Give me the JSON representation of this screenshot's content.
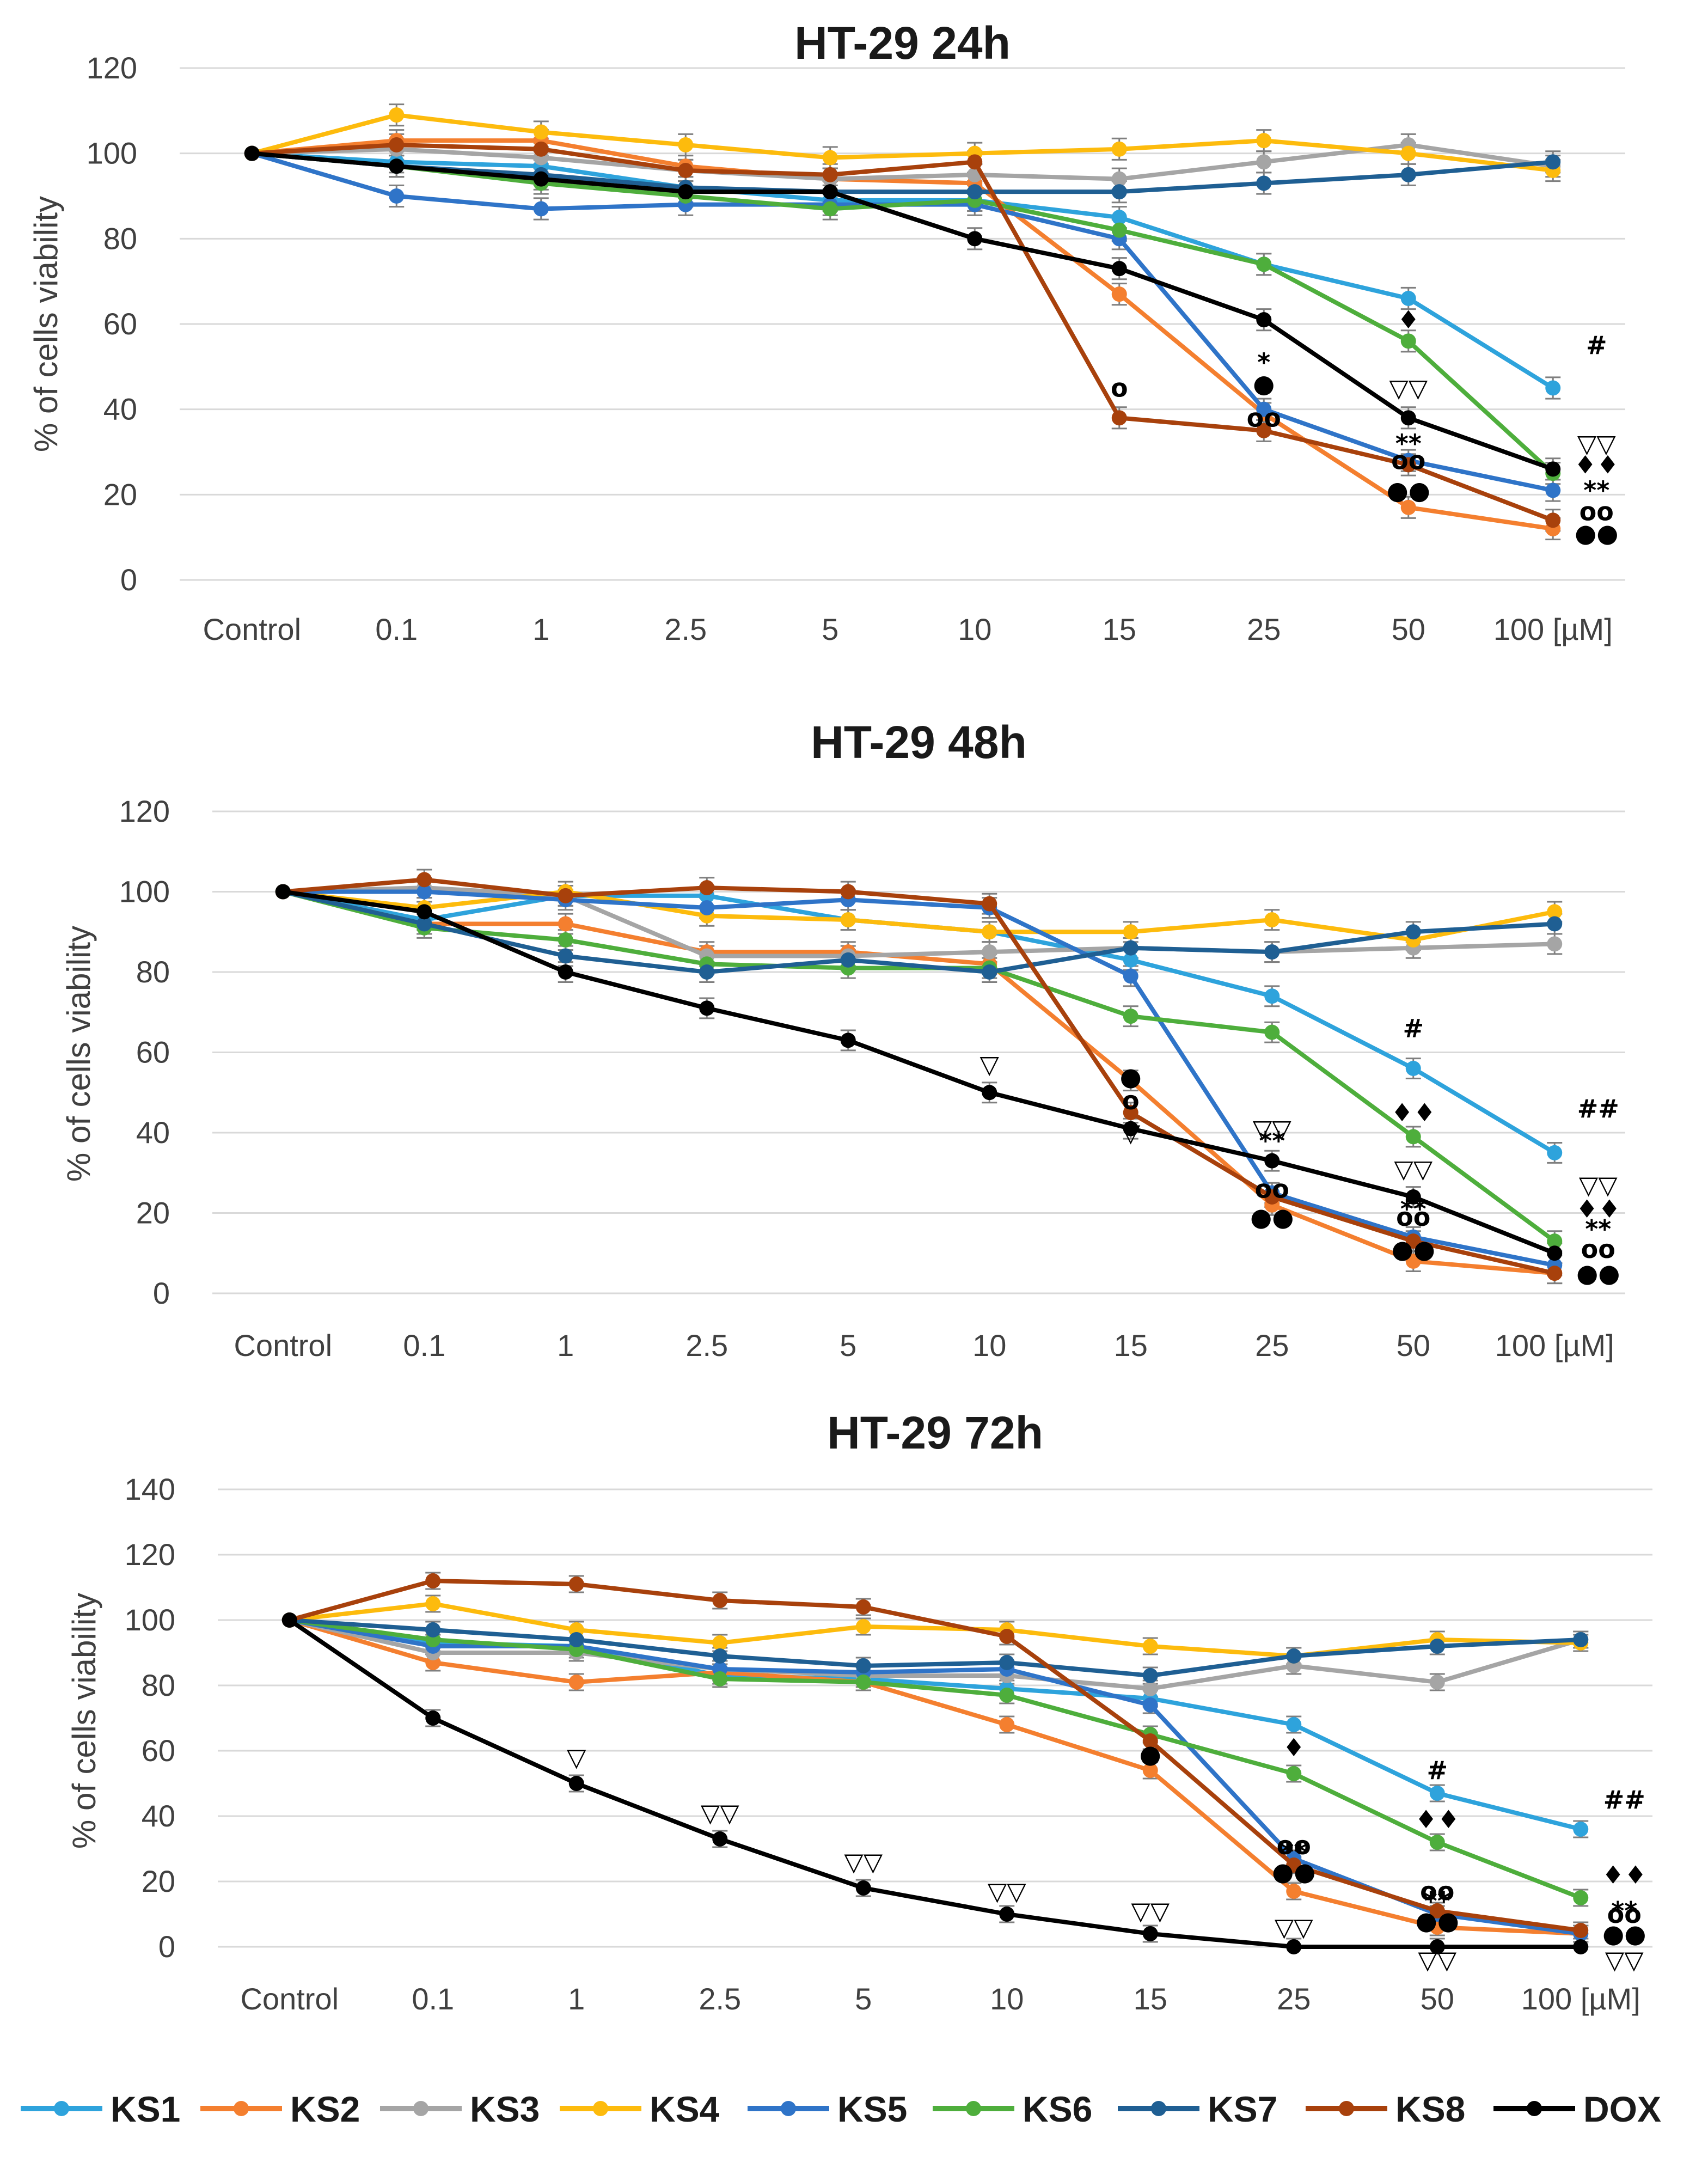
{
  "chart_data": [
    {
      "type": "line",
      "title": "HT-29 24h",
      "ylabel": "% of cells viability",
      "xlabel": "",
      "categories": [
        "Control",
        "0.1",
        "1",
        "2.5",
        "5",
        "10",
        "15",
        "25",
        "50",
        "100 [µM]"
      ],
      "ylim": [
        0,
        120
      ],
      "yticks": [
        0,
        20,
        40,
        60,
        80,
        100,
        120
      ],
      "grid": true,
      "series": [
        {
          "name": "KS1",
          "values": [
            100,
            98,
            97,
            92,
            89,
            89,
            85,
            74,
            66,
            45
          ]
        },
        {
          "name": "KS2",
          "values": [
            100,
            103,
            103,
            97,
            94,
            93,
            67,
            39,
            17,
            12
          ]
        },
        {
          "name": "KS3",
          "values": [
            100,
            101,
            99,
            96,
            94,
            95,
            94,
            98,
            102,
            97
          ]
        },
        {
          "name": "KS4",
          "values": [
            100,
            109,
            105,
            102,
            99,
            100,
            101,
            103,
            100,
            96
          ]
        },
        {
          "name": "KS5",
          "values": [
            100,
            90,
            87,
            88,
            88,
            88,
            80,
            40,
            28,
            21
          ]
        },
        {
          "name": "KS6",
          "values": [
            100,
            97,
            93,
            90,
            87,
            89,
            82,
            74,
            56,
            25
          ]
        },
        {
          "name": "KS7",
          "values": [
            100,
            97,
            95,
            92,
            91,
            91,
            91,
            93,
            95,
            98
          ]
        },
        {
          "name": "KS8",
          "values": [
            100,
            102,
            101,
            96,
            95,
            98,
            38,
            35,
            27,
            14
          ]
        },
        {
          "name": "DOX",
          "values": [
            100,
            97,
            94,
            91,
            91,
            80,
            73,
            61,
            38,
            26
          ]
        }
      ],
      "annotations": [
        {
          "text": "o",
          "category": "15",
          "y": 45
        },
        {
          "text": "*",
          "category": "25",
          "y": 51
        },
        {
          "text": "●",
          "category": "25",
          "y": 46
        },
        {
          "text": "oo",
          "category": "25",
          "y": 38
        },
        {
          "text": "♦",
          "category": "50",
          "y": 61
        },
        {
          "text": "▽▽",
          "category": "50",
          "y": 45
        },
        {
          "text": "**",
          "category": "50",
          "y": 32
        },
        {
          "text": "oo",
          "category": "50",
          "y": 28
        },
        {
          "text": "●●",
          "category": "50",
          "y": 21
        },
        {
          "text": "#",
          "category": "100 [µM]",
          "y": 55
        },
        {
          "text": "▽▽",
          "category": "100 [µM]",
          "y": 32
        },
        {
          "text": "♦♦",
          "category": "100 [µM]",
          "y": 27
        },
        {
          "text": "**",
          "category": "100 [µM]",
          "y": 21
        },
        {
          "text": "oo",
          "category": "100 [µM]",
          "y": 16
        },
        {
          "text": "●●",
          "category": "100 [µM]",
          "y": 11
        }
      ]
    },
    {
      "type": "line",
      "title": "HT-29 48h",
      "ylabel": "% of cells viability",
      "xlabel": "",
      "categories": [
        "Control",
        "0.1",
        "1",
        "2.5",
        "5",
        "10",
        "15",
        "25",
        "50",
        "100 [µM]"
      ],
      "ylim": [
        0,
        120
      ],
      "yticks": [
        0,
        20,
        40,
        60,
        80,
        100,
        120
      ],
      "grid": true,
      "series": [
        {
          "name": "KS1",
          "values": [
            100,
            93,
            99,
            99,
            93,
            90,
            83,
            74,
            56,
            35
          ]
        },
        {
          "name": "KS2",
          "values": [
            100,
            92,
            92,
            85,
            85,
            82,
            53,
            22,
            8,
            5
          ]
        },
        {
          "name": "KS3",
          "values": [
            100,
            101,
            99,
            84,
            84,
            85,
            86,
            85,
            86,
            87
          ]
        },
        {
          "name": "KS4",
          "values": [
            100,
            96,
            100,
            94,
            93,
            90,
            90,
            93,
            88,
            95
          ]
        },
        {
          "name": "KS5",
          "values": [
            100,
            100,
            98,
            96,
            98,
            96,
            79,
            25,
            14,
            7
          ]
        },
        {
          "name": "KS6",
          "values": [
            100,
            91,
            88,
            82,
            81,
            81,
            69,
            65,
            39,
            13
          ]
        },
        {
          "name": "KS7",
          "values": [
            100,
            92,
            84,
            80,
            83,
            80,
            86,
            85,
            90,
            92
          ]
        },
        {
          "name": "KS8",
          "values": [
            100,
            103,
            99,
            101,
            100,
            97,
            45,
            24,
            13,
            5
          ]
        },
        {
          "name": "DOX",
          "values": [
            100,
            95,
            80,
            71,
            63,
            50,
            41,
            33,
            24,
            10
          ]
        }
      ],
      "annotations": [
        {
          "text": "▽",
          "category": "10",
          "y": 57
        },
        {
          "text": "▽",
          "category": "15",
          "y": 40
        },
        {
          "text": "●",
          "category": "15",
          "y": 54
        },
        {
          "text": "o",
          "category": "15",
          "y": 48
        },
        {
          "text": "▽▽",
          "category": "25",
          "y": 41
        },
        {
          "text": "**",
          "category": "25",
          "y": 38
        },
        {
          "text": "oo",
          "category": "25",
          "y": 26
        },
        {
          "text": "●●",
          "category": "25",
          "y": 19
        },
        {
          "text": "#",
          "category": "50",
          "y": 66
        },
        {
          "text": "♦♦",
          "category": "50",
          "y": 45
        },
        {
          "text": "▽▽",
          "category": "50",
          "y": 31
        },
        {
          "text": "**",
          "category": "50",
          "y": 21
        },
        {
          "text": "oo",
          "category": "50",
          "y": 19
        },
        {
          "text": "●●",
          "category": "50",
          "y": 11
        },
        {
          "text": "##",
          "category": "100 [µM]",
          "y": 46
        },
        {
          "text": "▽▽",
          "category": "100 [µM]",
          "y": 27
        },
        {
          "text": "♦♦",
          "category": "100 [µM]",
          "y": 21
        },
        {
          "text": "**",
          "category": "100 [µM]",
          "y": 16
        },
        {
          "text": "oo",
          "category": "100 [µM]",
          "y": 11
        },
        {
          "text": "●●",
          "category": "100 [µM]",
          "y": 5
        }
      ]
    },
    {
      "type": "line",
      "title": "HT-29 72h",
      "ylabel": "% of cells viability",
      "xlabel": "",
      "categories": [
        "Control",
        "0.1",
        "1",
        "2.5",
        "5",
        "10",
        "15",
        "25",
        "50",
        "100 [µM]"
      ],
      "ylim": [
        0,
        140
      ],
      "yticks": [
        0,
        20,
        40,
        60,
        80,
        100,
        120,
        140
      ],
      "grid": true,
      "series": [
        {
          "name": "KS1",
          "values": [
            100,
            93,
            92,
            83,
            82,
            79,
            76,
            68,
            47,
            36
          ]
        },
        {
          "name": "KS2",
          "values": [
            100,
            87,
            81,
            84,
            81,
            68,
            54,
            17,
            6,
            4
          ]
        },
        {
          "name": "KS3",
          "values": [
            100,
            90,
            90,
            85,
            83,
            83,
            79,
            86,
            81,
            94
          ]
        },
        {
          "name": "KS4",
          "values": [
            100,
            105,
            97,
            93,
            98,
            97,
            92,
            89,
            94,
            93
          ]
        },
        {
          "name": "KS5",
          "values": [
            100,
            92,
            92,
            85,
            84,
            85,
            74,
            27,
            10,
            4
          ]
        },
        {
          "name": "KS6",
          "values": [
            100,
            94,
            91,
            82,
            81,
            77,
            65,
            53,
            32,
            15
          ]
        },
        {
          "name": "KS7",
          "values": [
            100,
            97,
            94,
            89,
            86,
            87,
            83,
            89,
            92,
            94
          ]
        },
        {
          "name": "KS8",
          "values": [
            100,
            112,
            111,
            106,
            104,
            95,
            63,
            25,
            11,
            5
          ]
        },
        {
          "name": "DOX",
          "values": [
            100,
            70,
            50,
            33,
            18,
            10,
            4,
            0,
            0,
            0
          ]
        }
      ],
      "annotations": [
        {
          "text": "▽",
          "category": "1",
          "y": 58
        },
        {
          "text": "▽▽",
          "category": "2.5",
          "y": 41
        },
        {
          "text": "▽▽",
          "category": "5",
          "y": 26
        },
        {
          "text": "▽▽",
          "category": "10",
          "y": 17
        },
        {
          "text": "▽▽",
          "category": "15",
          "y": 11
        },
        {
          "text": "●",
          "category": "15",
          "y": 59
        },
        {
          "text": "♦",
          "category": "25",
          "y": 61
        },
        {
          "text": "oo",
          "category": "25",
          "y": 31
        },
        {
          "text": "**",
          "category": "25",
          "y": 29
        },
        {
          "text": "●●",
          "category": "25",
          "y": 23
        },
        {
          "text": "▽▽",
          "category": "25",
          "y": 6
        },
        {
          "text": "#",
          "category": "50",
          "y": 54
        },
        {
          "text": "♦♦",
          "category": "50",
          "y": 39
        },
        {
          "text": "oo",
          "category": "50",
          "y": 17
        },
        {
          "text": "**",
          "category": "50",
          "y": 14
        },
        {
          "text": "●●",
          "category": "50",
          "y": 8
        },
        {
          "text": "▽▽",
          "category": "50",
          "y": -4
        },
        {
          "text": "##",
          "category": "100 [µM]",
          "y": 45
        },
        {
          "text": "♦♦",
          "category": "100 [µM]",
          "y": 22
        },
        {
          "text": "**",
          "category": "100 [µM]",
          "y": 11
        },
        {
          "text": "oo",
          "category": "100 [µM]",
          "y": 10
        },
        {
          "text": "●●",
          "category": "100 [µM]",
          "y": 4
        },
        {
          "text": "▽▽",
          "category": "100 [µM]",
          "y": -4
        }
      ]
    }
  ],
  "legend": [
    {
      "name": "KS1",
      "color": "#2ea3dc"
    },
    {
      "name": "KS2",
      "color": "#f47f2f"
    },
    {
      "name": "KS3",
      "color": "#a5a5a5"
    },
    {
      "name": "KS4",
      "color": "#fdbb0d"
    },
    {
      "name": "KS5",
      "color": "#2f74c8"
    },
    {
      "name": "KS6",
      "color": "#4eae3c"
    },
    {
      "name": "KS7",
      "color": "#1f5f93"
    },
    {
      "name": "KS8",
      "color": "#a8410c"
    },
    {
      "name": "DOX",
      "color": "#000000"
    }
  ]
}
